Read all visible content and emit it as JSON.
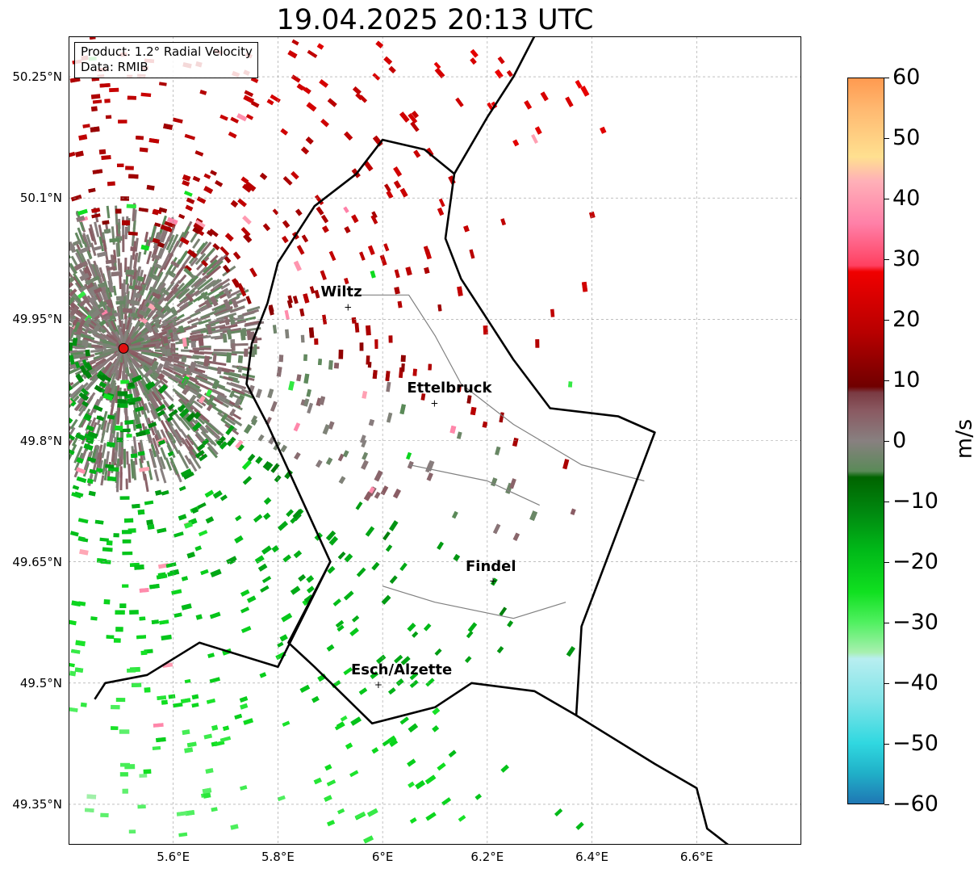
{
  "title": "19.04.2025 20:13 UTC",
  "info_box": {
    "product": "Product: 1.2° Radial Velocity",
    "data_source": "Data: RMIB"
  },
  "map": {
    "lon_range": [
      5.4,
      6.8
    ],
    "lat_range": [
      49.3,
      50.3
    ],
    "lat_ticks": [
      {
        "value": 50.25,
        "label": "50.25°N"
      },
      {
        "value": 50.1,
        "label": "50.1°N"
      },
      {
        "value": 49.95,
        "label": "49.95°N"
      },
      {
        "value": 49.8,
        "label": "49.8°N"
      },
      {
        "value": 49.65,
        "label": "49.65°N"
      },
      {
        "value": 49.5,
        "label": "49.5°N"
      },
      {
        "value": 49.35,
        "label": "49.35°N"
      }
    ],
    "lon_ticks": [
      {
        "value": 5.6,
        "label": "5.6°E"
      },
      {
        "value": 5.8,
        "label": "5.8°E"
      },
      {
        "value": 6.0,
        "label": "6°E"
      },
      {
        "value": 6.2,
        "label": "6.2°E"
      },
      {
        "value": 6.4,
        "label": "6.4°E"
      },
      {
        "value": 6.6,
        "label": "6.6°E"
      }
    ],
    "gridlines": true,
    "radar_site": {
      "lon": 5.505,
      "lat": 49.914,
      "color": "#e01010"
    },
    "cities": [
      {
        "name": "Wiltz",
        "lon": 5.934,
        "lat": 49.966
      },
      {
        "name": "Ettelbruck",
        "lon": 6.099,
        "lat": 49.847
      },
      {
        "name": "Findel",
        "lon": 6.211,
        "lat": 49.627
      },
      {
        "name": "Esch/Alzette",
        "lon": 5.992,
        "lat": 49.499
      }
    ],
    "lux_border": [
      [
        6.137,
        50.13
      ],
      [
        6.08,
        50.16
      ],
      [
        6.0,
        50.172
      ],
      [
        5.95,
        50.13
      ],
      [
        5.87,
        50.09
      ],
      [
        5.8,
        50.02
      ],
      [
        5.78,
        49.97
      ],
      [
        5.75,
        49.92
      ],
      [
        5.74,
        49.87
      ],
      [
        5.78,
        49.82
      ],
      [
        5.9,
        49.65
      ],
      [
        5.82,
        49.55
      ],
      [
        5.87,
        49.52
      ],
      [
        5.98,
        49.45
      ],
      [
        6.1,
        49.47
      ],
      [
        6.17,
        49.5
      ],
      [
        6.29,
        49.49
      ],
      [
        6.37,
        49.46
      ],
      [
        6.38,
        49.57
      ],
      [
        6.52,
        49.81
      ],
      [
        6.45,
        49.83
      ],
      [
        6.32,
        49.84
      ],
      [
        6.25,
        49.9
      ],
      [
        6.2,
        49.95
      ],
      [
        6.15,
        50.0
      ],
      [
        6.12,
        50.05
      ],
      [
        6.137,
        50.13
      ]
    ],
    "region_outline": [
      [
        5.9,
        49.65
      ],
      [
        5.8,
        49.52
      ],
      [
        5.65,
        49.55
      ],
      [
        5.55,
        49.51
      ],
      [
        5.47,
        49.5
      ],
      [
        5.45,
        49.48
      ]
    ],
    "east_boundary": [
      [
        6.29,
        50.3
      ],
      [
        6.25,
        50.25
      ],
      [
        6.2,
        50.2
      ],
      [
        6.137,
        50.13
      ]
    ],
    "east_boundary_south": [
      [
        6.37,
        49.46
      ],
      [
        6.52,
        49.4
      ],
      [
        6.6,
        49.37
      ],
      [
        6.62,
        49.32
      ],
      [
        6.66,
        49.3
      ]
    ],
    "cantons": [
      [
        [
          5.95,
          49.98
        ],
        [
          6.05,
          49.98
        ],
        [
          6.1,
          49.93
        ],
        [
          6.15,
          49.87
        ]
      ],
      [
        [
          6.05,
          49.77
        ],
        [
          6.2,
          49.75
        ],
        [
          6.3,
          49.72
        ]
      ],
      [
        [
          6.0,
          49.62
        ],
        [
          6.1,
          49.6
        ],
        [
          6.25,
          49.58
        ],
        [
          6.35,
          49.6
        ]
      ],
      [
        [
          6.15,
          49.87
        ],
        [
          6.25,
          49.82
        ],
        [
          6.38,
          49.77
        ],
        [
          6.5,
          49.75
        ]
      ]
    ]
  },
  "colorbar": {
    "min": -60,
    "max": 60,
    "unit": "m/s",
    "ticks": [
      {
        "value": 60,
        "label": "60"
      },
      {
        "value": 50,
        "label": "50"
      },
      {
        "value": 40,
        "label": "40"
      },
      {
        "value": 30,
        "label": "30"
      },
      {
        "value": 20,
        "label": "20"
      },
      {
        "value": 10,
        "label": "10"
      },
      {
        "value": 0,
        "label": "0"
      },
      {
        "value": -10,
        "label": "−10"
      },
      {
        "value": -20,
        "label": "−20"
      },
      {
        "value": -30,
        "label": "−30"
      },
      {
        "value": -40,
        "label": "−40"
      },
      {
        "value": -50,
        "label": "−50"
      },
      {
        "value": -60,
        "label": "−60"
      }
    ],
    "stops": [
      {
        "value": -60,
        "color": "#1f77b4"
      },
      {
        "value": -55,
        "color": "#20b0c8"
      },
      {
        "value": -50,
        "color": "#30d8e0"
      },
      {
        "value": -43,
        "color": "#80e4e8"
      },
      {
        "value": -36,
        "color": "#b8eef0"
      },
      {
        "value": -35,
        "color": "#a8f0b0"
      },
      {
        "value": -30,
        "color": "#50f060"
      },
      {
        "value": -25,
        "color": "#10e020"
      },
      {
        "value": -18,
        "color": "#00b818"
      },
      {
        "value": -12,
        "color": "#008a10"
      },
      {
        "value": -6,
        "color": "#006400"
      },
      {
        "value": -5,
        "color": "#5a8a58"
      },
      {
        "value": 0,
        "color": "#888080"
      },
      {
        "value": 5,
        "color": "#8a5a62"
      },
      {
        "value": 8,
        "color": "#7a3a42"
      },
      {
        "value": 9,
        "color": "#700000"
      },
      {
        "value": 18,
        "color": "#b80000"
      },
      {
        "value": 28,
        "color": "#f00000"
      },
      {
        "value": 29,
        "color": "#ff4060"
      },
      {
        "value": 36,
        "color": "#ff80a8"
      },
      {
        "value": 43,
        "color": "#ffb0b8"
      },
      {
        "value": 47,
        "color": "#ffe090"
      },
      {
        "value": 55,
        "color": "#ffb870"
      },
      {
        "value": 60,
        "color": "#ff9a50"
      }
    ]
  }
}
